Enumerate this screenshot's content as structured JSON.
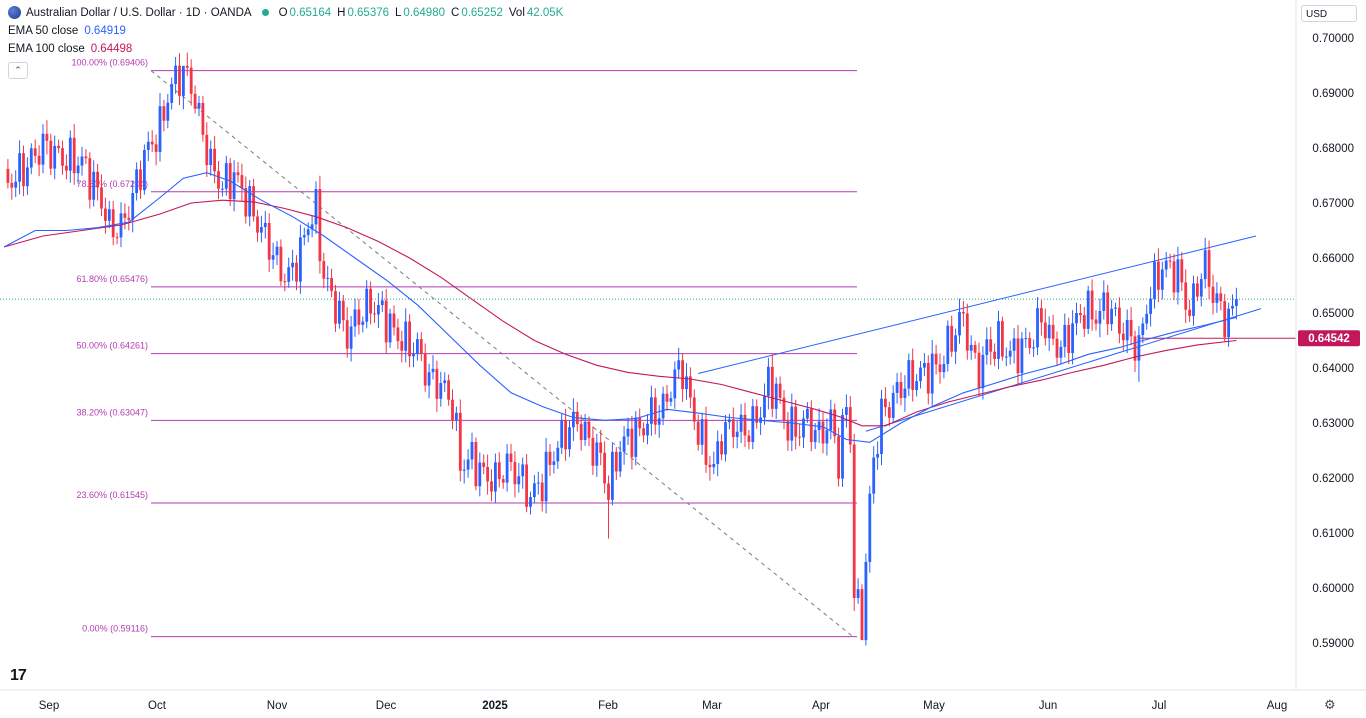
{
  "header": {
    "title": "Australian Dollar / U.S. Dollar · 1D · OANDA",
    "open_label": "O",
    "open": "0.65164",
    "high_label": "H",
    "high": "0.65376",
    "low_label": "L",
    "low": "0.64980",
    "close_label": "C",
    "close": "0.65252",
    "vol_label": "Vol",
    "vol": "42.05K"
  },
  "indicators": {
    "ema50_label": "EMA 50 close",
    "ema50_value": "0.64919",
    "ema100_label": "EMA 100 close",
    "ema100_value": "0.64498"
  },
  "toolbar": {
    "currency": "USD",
    "collapse_icon": "chevron-up-icon",
    "settings_icon": "gear-icon"
  },
  "colors": {
    "up": "#2962ff",
    "down": "#f23645",
    "ema50": "#2962ff",
    "ema100": "#c2185b",
    "fib": "#b23bb2",
    "channel": "#2962ff",
    "price_badge": "#c2185b"
  },
  "chart_data": {
    "type": "candlestick",
    "symbol": "AUDUSD",
    "ylim": [
      0.5855,
      0.7035
    ],
    "y_ticks": [
      "0.70000",
      "0.69000",
      "0.68000",
      "0.67000",
      "0.66000",
      "0.65000",
      "0.64000",
      "0.63000",
      "0.62000",
      "0.61000",
      "0.60000",
      "0.59000"
    ],
    "x_ticks": [
      "Sep",
      "Oct",
      "Nov",
      "Dec",
      "2025",
      "Feb",
      "Mar",
      "Apr",
      "May",
      "Jun",
      "Jul",
      "Aug"
    ],
    "price_badge": "0.64542",
    "current_price": 0.65252,
    "fib_levels": [
      {
        "label": "100.00% (0.69406)",
        "value": 0.69406
      },
      {
        "label": "78.60% (0.67204)",
        "value": 0.67204
      },
      {
        "label": "61.80% (0.65476)",
        "value": 0.65476
      },
      {
        "label": "50.00% (0.64261)",
        "value": 0.64261
      },
      {
        "label": "38.20% (0.63047)",
        "value": 0.63047
      },
      {
        "label": "23.60% (0.61545)",
        "value": 0.61545
      },
      {
        "label": "0.00% (0.59116)",
        "value": 0.59116
      }
    ],
    "path_points": [
      [
        0,
        0.673
      ],
      [
        5,
        0.676
      ],
      [
        10,
        0.6805
      ],
      [
        15,
        0.678
      ],
      [
        20,
        0.6775
      ],
      [
        25,
        0.6705
      ],
      [
        27,
        0.6655
      ],
      [
        30,
        0.6655
      ],
      [
        33,
        0.671
      ],
      [
        36,
        0.6785
      ],
      [
        40,
        0.6835
      ],
      [
        42,
        0.6895
      ],
      [
        44,
        0.6925
      ],
      [
        46,
        0.6938
      ],
      [
        48,
        0.6915
      ],
      [
        50,
        0.6855
      ],
      [
        53,
        0.677
      ],
      [
        56,
        0.673
      ],
      [
        59,
        0.675
      ],
      [
        62,
        0.671
      ],
      [
        65,
        0.6665
      ],
      [
        68,
        0.6625
      ],
      [
        71,
        0.6575
      ],
      [
        73,
        0.6565
      ],
      [
        76,
        0.661
      ],
      [
        78,
        0.6665
      ],
      [
        80,
        0.6685
      ],
      [
        82,
        0.6565
      ],
      [
        85,
        0.6515
      ],
      [
        88,
        0.646
      ],
      [
        91,
        0.6495
      ],
      [
        94,
        0.6515
      ],
      [
        97,
        0.65
      ],
      [
        100,
        0.6465
      ],
      [
        103,
        0.6445
      ],
      [
        106,
        0.6435
      ],
      [
        109,
        0.638
      ],
      [
        112,
        0.637
      ],
      [
        115,
        0.6335
      ],
      [
        117,
        0.6225
      ],
      [
        120,
        0.6235
      ],
      [
        123,
        0.6205
      ],
      [
        126,
        0.6195
      ],
      [
        129,
        0.6225
      ],
      [
        132,
        0.6205
      ],
      [
        135,
        0.6165
      ],
      [
        138,
        0.6195
      ],
      [
        141,
        0.6245
      ],
      [
        144,
        0.6285
      ],
      [
        147,
        0.6305
      ],
      [
        150,
        0.6265
      ],
      [
        153,
        0.6235
      ],
      [
        155,
        0.6175
      ],
      [
        157,
        0.624
      ],
      [
        160,
        0.6275
      ],
      [
        163,
        0.6285
      ],
      [
        166,
        0.6315
      ],
      [
        169,
        0.6325
      ],
      [
        172,
        0.6385
      ],
      [
        174,
        0.64
      ],
      [
        176,
        0.6335
      ],
      [
        178,
        0.6285
      ],
      [
        180,
        0.6245
      ],
      [
        182,
        0.6215
      ],
      [
        184,
        0.628
      ],
      [
        187,
        0.6295
      ],
      [
        190,
        0.6285
      ],
      [
        193,
        0.6305
      ],
      [
        196,
        0.637
      ],
      [
        198,
        0.636
      ],
      [
        200,
        0.6305
      ],
      [
        203,
        0.6285
      ],
      [
        206,
        0.6305
      ],
      [
        209,
        0.6275
      ],
      [
        212,
        0.6305
      ],
      [
        214,
        0.6235
      ],
      [
        216,
        0.633
      ],
      [
        217,
        0.6275
      ],
      [
        218,
        0.599
      ],
      [
        219,
        0.596
      ],
      [
        220,
        0.594
      ],
      [
        221,
        0.6045
      ],
      [
        222,
        0.6155
      ],
      [
        223,
        0.6235
      ],
      [
        225,
        0.6315
      ],
      [
        228,
        0.6345
      ],
      [
        231,
        0.6375
      ],
      [
        234,
        0.6385
      ],
      [
        237,
        0.6395
      ],
      [
        240,
        0.6405
      ],
      [
        243,
        0.6455
      ],
      [
        246,
        0.6495
      ],
      [
        248,
        0.6425
      ],
      [
        250,
        0.6395
      ],
      [
        252,
        0.6435
      ],
      [
        255,
        0.6445
      ],
      [
        258,
        0.6425
      ],
      [
        261,
        0.6435
      ],
      [
        264,
        0.6455
      ],
      [
        266,
        0.6495
      ],
      [
        268,
        0.6455
      ],
      [
        271,
        0.6435
      ],
      [
        274,
        0.6475
      ],
      [
        277,
        0.6505
      ],
      [
        280,
        0.6495
      ],
      [
        283,
        0.6515
      ],
      [
        286,
        0.6475
      ],
      [
        289,
        0.6455
      ],
      [
        291,
        0.6435
      ],
      [
        293,
        0.6515
      ],
      [
        296,
        0.6575
      ],
      [
        299,
        0.6585
      ],
      [
        302,
        0.6555
      ],
      [
        304,
        0.6495
      ],
      [
        306,
        0.6555
      ],
      [
        308,
        0.6585
      ],
      [
        310,
        0.6535
      ],
      [
        312,
        0.6505
      ],
      [
        314,
        0.6485
      ],
      [
        316,
        0.6525
      ]
    ],
    "ema50_points": [
      [
        0,
        0.662
      ],
      [
        8,
        0.665
      ],
      [
        16,
        0.665
      ],
      [
        24,
        0.6655
      ],
      [
        32,
        0.6665
      ],
      [
        40,
        0.671
      ],
      [
        46,
        0.6745
      ],
      [
        52,
        0.6755
      ],
      [
        58,
        0.674
      ],
      [
        66,
        0.6705
      ],
      [
        74,
        0.6675
      ],
      [
        82,
        0.664
      ],
      [
        90,
        0.66
      ],
      [
        98,
        0.656
      ],
      [
        106,
        0.6515
      ],
      [
        114,
        0.646
      ],
      [
        122,
        0.6405
      ],
      [
        130,
        0.6355
      ],
      [
        138,
        0.633
      ],
      [
        146,
        0.631
      ],
      [
        154,
        0.6305
      ],
      [
        162,
        0.6308
      ],
      [
        170,
        0.6325
      ],
      [
        178,
        0.6318
      ],
      [
        186,
        0.631
      ],
      [
        194,
        0.6305
      ],
      [
        202,
        0.63
      ],
      [
        210,
        0.6293
      ],
      [
        216,
        0.627
      ],
      [
        222,
        0.6265
      ],
      [
        230,
        0.63
      ],
      [
        238,
        0.633
      ],
      [
        246,
        0.6355
      ],
      [
        254,
        0.6372
      ],
      [
        262,
        0.639
      ],
      [
        270,
        0.6405
      ],
      [
        278,
        0.6425
      ],
      [
        286,
        0.6437
      ],
      [
        292,
        0.645
      ],
      [
        300,
        0.6465
      ],
      [
        308,
        0.6478
      ],
      [
        316,
        0.6492
      ]
    ],
    "ema100_points": [
      [
        0,
        0.662
      ],
      [
        10,
        0.664
      ],
      [
        20,
        0.665
      ],
      [
        30,
        0.666
      ],
      [
        40,
        0.668
      ],
      [
        48,
        0.67
      ],
      [
        56,
        0.6705
      ],
      [
        64,
        0.6702
      ],
      [
        72,
        0.669
      ],
      [
        80,
        0.6675
      ],
      [
        88,
        0.6655
      ],
      [
        96,
        0.663
      ],
      [
        104,
        0.66
      ],
      [
        112,
        0.6565
      ],
      [
        120,
        0.6525
      ],
      [
        128,
        0.6485
      ],
      [
        136,
        0.645
      ],
      [
        144,
        0.6425
      ],
      [
        152,
        0.6405
      ],
      [
        160,
        0.6392
      ],
      [
        168,
        0.6385
      ],
      [
        176,
        0.638
      ],
      [
        184,
        0.637
      ],
      [
        192,
        0.6355
      ],
      [
        200,
        0.634
      ],
      [
        208,
        0.6325
      ],
      [
        214,
        0.6312
      ],
      [
        220,
        0.6295
      ],
      [
        226,
        0.6295
      ],
      [
        234,
        0.632
      ],
      [
        242,
        0.6338
      ],
      [
        250,
        0.6352
      ],
      [
        258,
        0.6366
      ],
      [
        266,
        0.6378
      ],
      [
        274,
        0.6392
      ],
      [
        282,
        0.6405
      ],
      [
        290,
        0.642
      ],
      [
        298,
        0.6432
      ],
      [
        306,
        0.6442
      ],
      [
        316,
        0.645
      ]
    ]
  }
}
